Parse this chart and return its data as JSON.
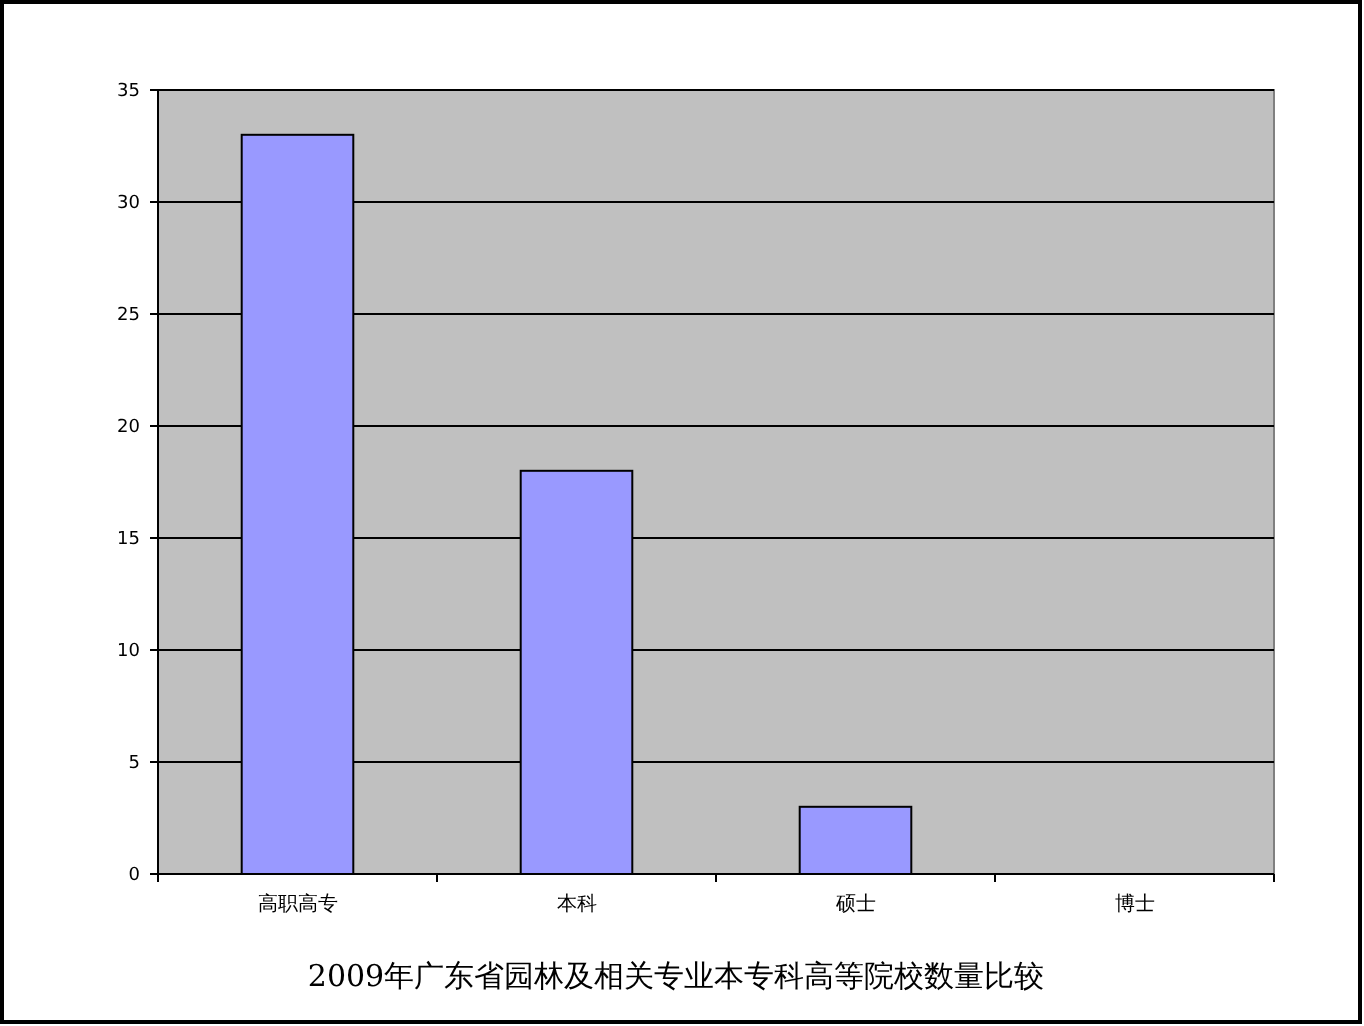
{
  "chart_data": {
    "type": "bar",
    "title": "2009年广东省园林及相关专业本专科高等院校数量比较",
    "categories": [
      "高职高专",
      "本科",
      "硕士",
      "博士"
    ],
    "values": [
      33,
      18,
      3,
      0
    ],
    "color": "#9999ff",
    "ylim": [
      0,
      35
    ],
    "yticks": [
      0,
      5,
      10,
      15,
      20,
      25,
      30,
      35
    ],
    "grid": "y"
  }
}
